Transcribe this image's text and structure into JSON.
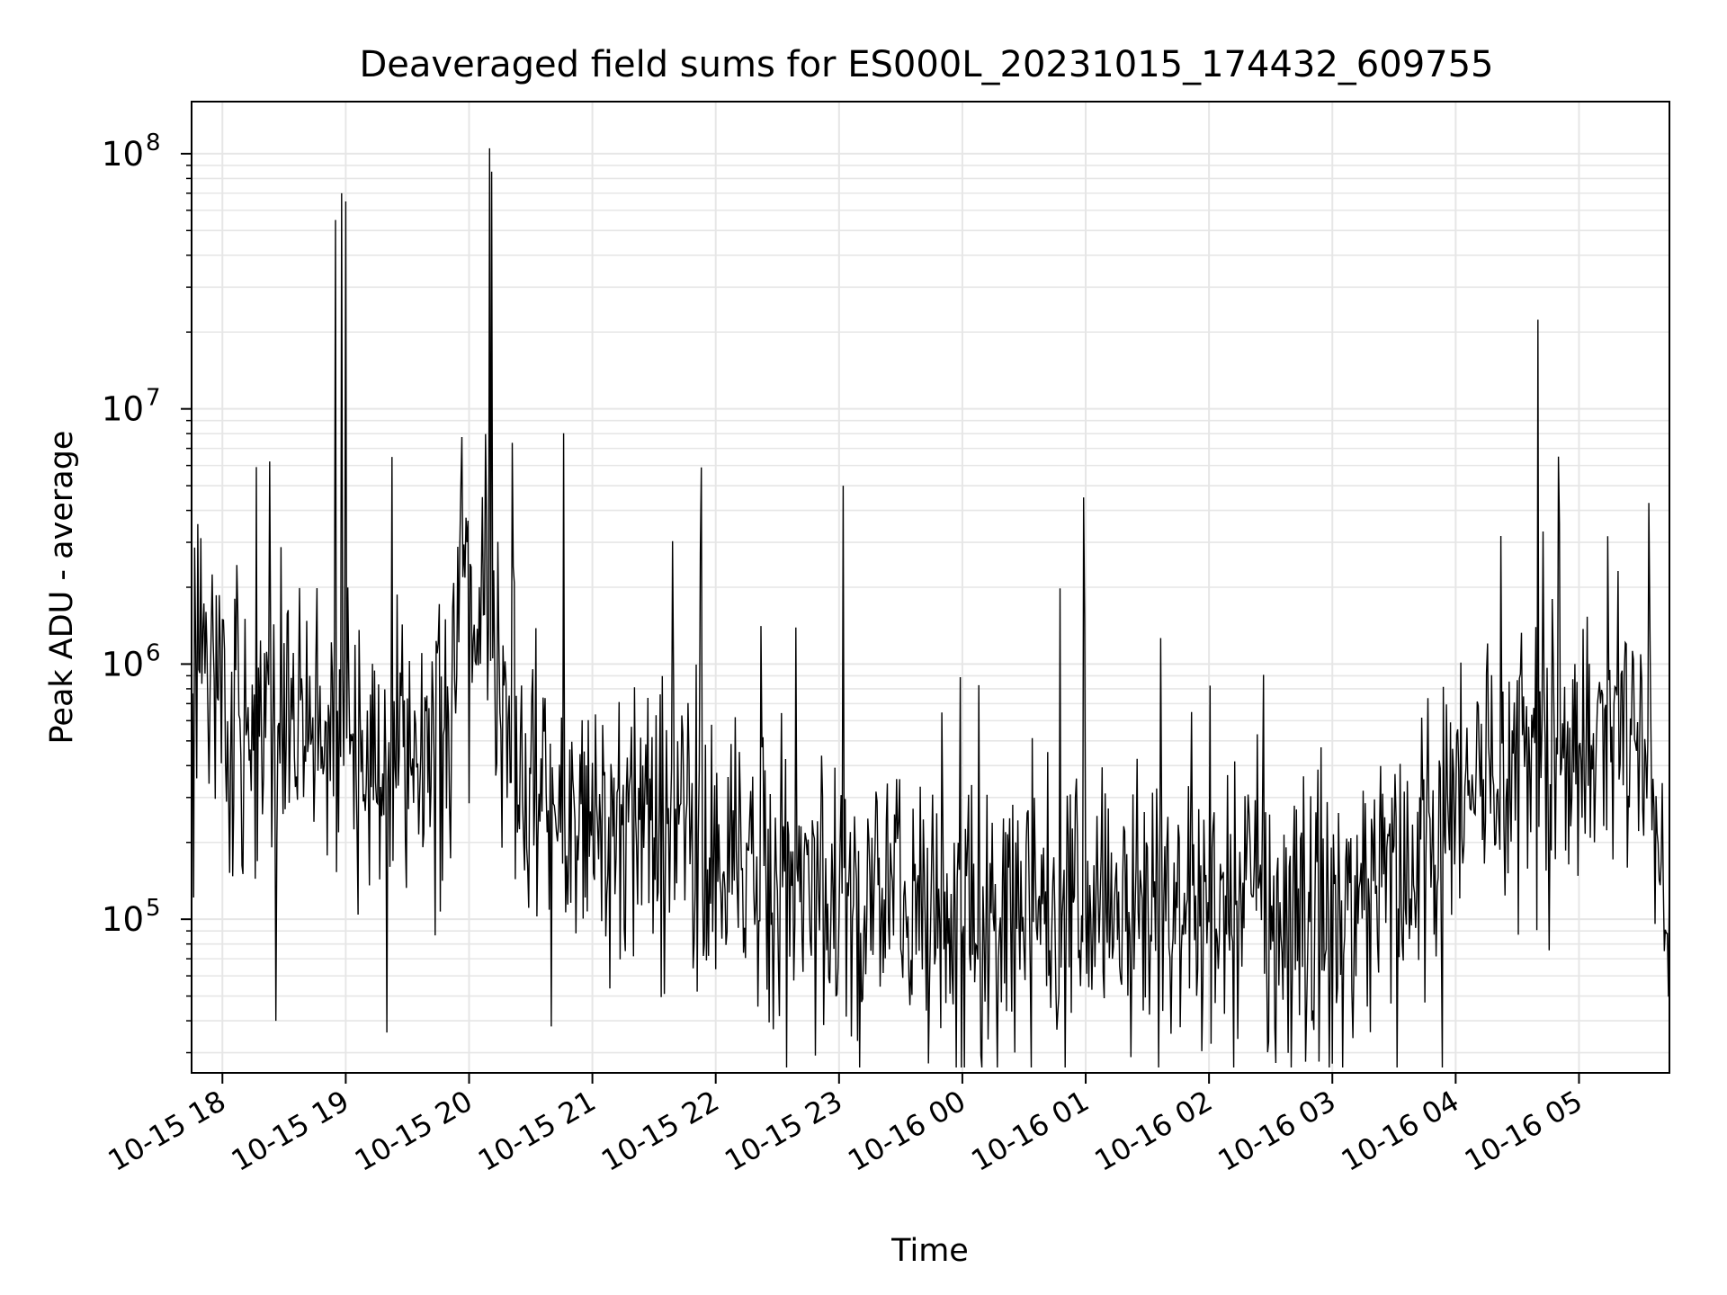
{
  "chart_data": {
    "type": "line",
    "title": "Deaveraged field sums for ES000L_20231015_174432_609755",
    "xlabel": "Time",
    "ylabel": "Peak ADU - average",
    "yscale": "log",
    "ylim": [
      25000,
      160000000
    ],
    "xlim": [
      "2023-10-15 17:45",
      "2023-10-16 05:44"
    ],
    "grid": true,
    "line_color": "#000000",
    "grid_color": "#e6e6e6",
    "x_tick_labels": [
      "10-15 18",
      "10-15 19",
      "10-15 20",
      "10-15 21",
      "10-15 22",
      "10-15 23",
      "10-16 00",
      "10-16 01",
      "10-16 02",
      "10-16 03",
      "10-16 04",
      "10-16 05"
    ],
    "y_ticks": [
      {
        "value": 100000,
        "base": "10",
        "exp": "5"
      },
      {
        "value": 1000000,
        "base": "10",
        "exp": "6"
      },
      {
        "value": 10000000,
        "base": "10",
        "exp": "7"
      },
      {
        "value": 100000000,
        "base": "10",
        "exp": "8"
      }
    ],
    "series": [
      {
        "x": [
          "2023-10-15 17:45",
          "2023-10-15 17:50",
          "2023-10-15 17:55",
          "2023-10-15 18:00",
          "2023-10-15 18:08",
          "2023-10-15 18:15",
          "2023-10-15 18:22",
          "2023-10-15 18:30",
          "2023-10-15 18:38",
          "2023-10-15 18:45",
          "2023-10-15 18:52",
          "2023-10-15 19:00",
          "2023-10-15 19:08",
          "2023-10-15 19:15",
          "2023-10-15 19:22",
          "2023-10-15 19:30",
          "2023-10-15 19:38",
          "2023-10-15 19:45",
          "2023-10-15 19:50",
          "2023-10-15 19:55",
          "2023-10-15 20:00",
          "2023-10-15 20:05",
          "2023-10-15 20:10",
          "2023-10-15 20:15",
          "2023-10-15 20:25",
          "2023-10-15 20:35",
          "2023-10-15 20:45",
          "2023-10-15 21:00",
          "2023-10-15 21:15",
          "2023-10-15 21:30",
          "2023-10-15 21:45",
          "2023-10-15 22:00",
          "2023-10-15 22:15",
          "2023-10-15 22:30",
          "2023-10-15 22:45",
          "2023-10-15 23:00",
          "2023-10-15 23:15",
          "2023-10-15 23:30",
          "2023-10-15 23:45",
          "2023-10-16 00:00",
          "2023-10-16 00:15",
          "2023-10-16 00:30",
          "2023-10-16 00:45",
          "2023-10-16 01:00",
          "2023-10-16 01:15",
          "2023-10-16 01:30",
          "2023-10-16 01:45",
          "2023-10-16 02:00",
          "2023-10-16 02:15",
          "2023-10-16 02:30",
          "2023-10-16 02:45",
          "2023-10-16 03:00",
          "2023-10-16 03:15",
          "2023-10-16 03:30",
          "2023-10-16 03:45",
          "2023-10-16 04:00",
          "2023-10-16 04:15",
          "2023-10-16 04:30",
          "2023-10-16 04:45",
          "2023-10-16 05:00",
          "2023-10-16 05:15",
          "2023-10-16 05:30",
          "2023-10-16 05:40",
          "2023-10-16 05:44"
        ],
        "y": [
          900000,
          1200000,
          800000,
          600000,
          650000,
          550000,
          600000,
          520000,
          560000,
          600000,
          650000,
          600000,
          580000,
          520000,
          540000,
          560000,
          550000,
          580000,
          620000,
          2000000,
          2500000,
          2200000,
          1800000,
          600000,
          450000,
          400000,
          300000,
          250000,
          280000,
          260000,
          220000,
          200000,
          150000,
          140000,
          130000,
          110000,
          110000,
          120000,
          115000,
          105000,
          110000,
          110000,
          120000,
          115000,
          110000,
          105000,
          100000,
          105000,
          95000,
          90000,
          95000,
          100000,
          120000,
          150000,
          200000,
          300000,
          400000,
          420000,
          450000,
          500000,
          550000,
          600000,
          200000,
          60000
        ],
        "peaks": [
          {
            "x": "2023-10-15 18:55",
            "y": 55000000
          },
          {
            "x": "2023-10-15 18:58",
            "y": 70000000
          },
          {
            "x": "2023-10-15 19:00",
            "y": 65000000
          },
          {
            "x": "2023-10-15 20:10",
            "y": 105000000
          },
          {
            "x": "2023-10-15 20:11",
            "y": 85000000
          },
          {
            "x": "2023-10-15 21:53",
            "y": 5900000
          },
          {
            "x": "2023-10-15 23:02",
            "y": 5000000
          },
          {
            "x": "2023-10-16 00:59",
            "y": 4500000
          },
          {
            "x": "2023-10-16 04:50",
            "y": 6500000
          }
        ],
        "dips": [
          {
            "x": "2023-10-15 18:26",
            "y": 40000
          },
          {
            "x": "2023-10-15 19:20",
            "y": 36000
          },
          {
            "x": "2023-10-15 20:40",
            "y": 38000
          },
          {
            "x": "2023-10-16 02:50",
            "y": 40000
          }
        ]
      }
    ]
  }
}
